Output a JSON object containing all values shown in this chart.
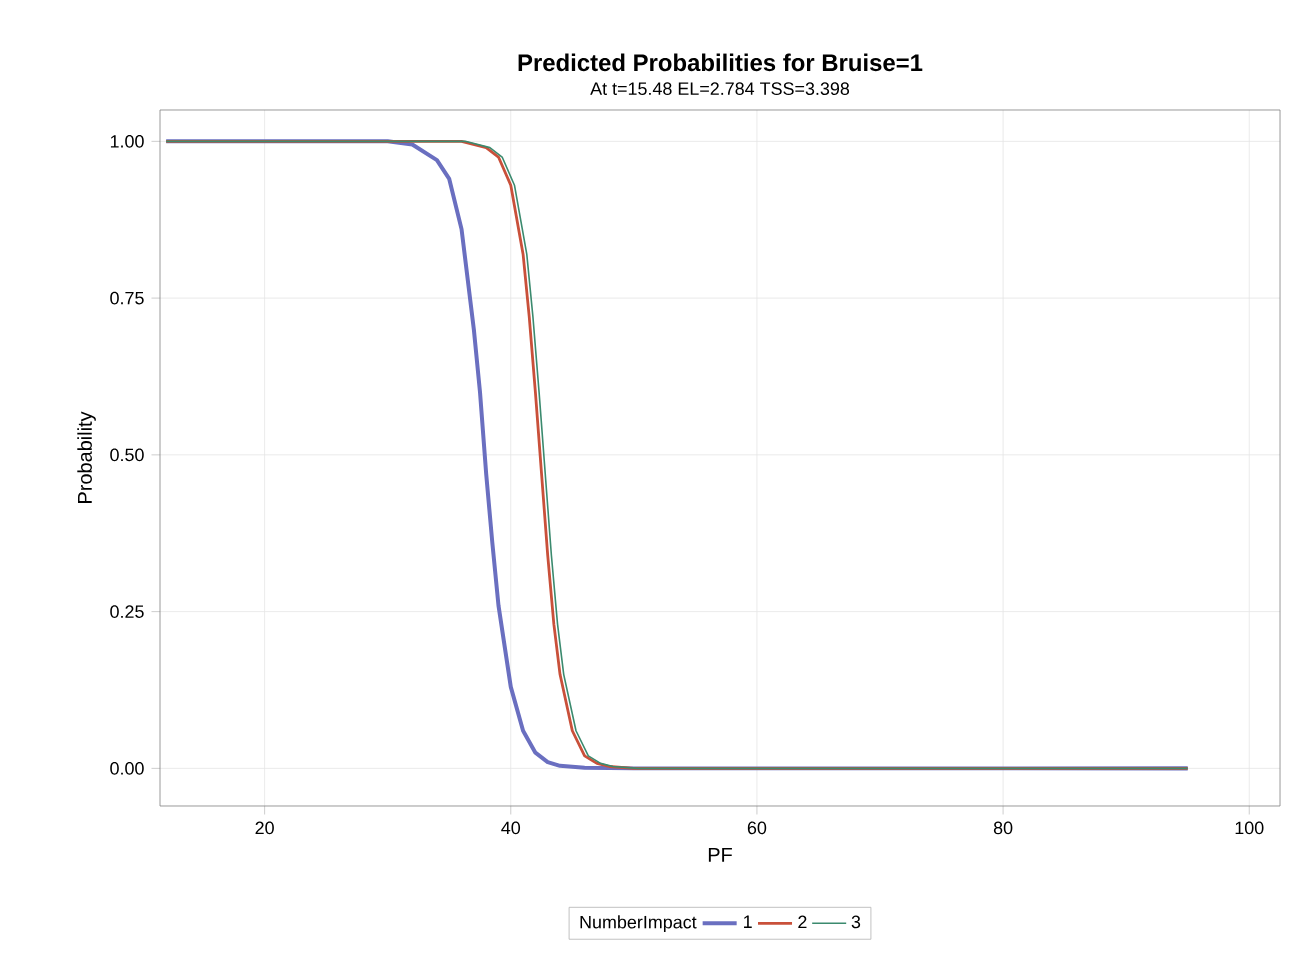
{
  "chart_data": {
    "type": "line",
    "title": "Predicted Probabilities for Bruise=1",
    "subtitle": "At t=15.48 EL=2.784 TSS=3.398",
    "xlabel": "PF",
    "ylabel": "Probability",
    "legend_title": "NumberImpact",
    "xlim": [
      11.5,
      102.5
    ],
    "ylim": [
      -0.06,
      1.05
    ],
    "xticks": [
      20,
      40,
      60,
      80,
      100
    ],
    "yticks": [
      {
        "value": 0,
        "label": "0.00"
      },
      {
        "value": 0.25,
        "label": "0.25"
      },
      {
        "value": 0.5,
        "label": "0.50"
      },
      {
        "value": 0.75,
        "label": "0.75"
      },
      {
        "value": 1,
        "label": "1.00"
      }
    ],
    "grid": true,
    "legend": "bottom",
    "line_style": "solid",
    "marker": "none",
    "series": [
      {
        "name": "1",
        "color": "#6a6fc0",
        "x": [
          12,
          30,
          32,
          34,
          35,
          36,
          37,
          37.5,
          38,
          38.5,
          39,
          40,
          41,
          42,
          43,
          44,
          46,
          50,
          95
        ],
        "values": [
          1,
          1,
          0.995,
          0.97,
          0.94,
          0.86,
          0.7,
          0.6,
          0.47,
          0.36,
          0.26,
          0.13,
          0.06,
          0.025,
          0.01,
          0.004,
          0.001,
          0,
          0
        ]
      },
      {
        "name": "2",
        "color": "#c9503a",
        "x": [
          12,
          36,
          38,
          39,
          40,
          41,
          41.5,
          42,
          42.5,
          43,
          43.5,
          44,
          45,
          46,
          47,
          48,
          50,
          95
        ],
        "values": [
          1,
          1,
          0.99,
          0.975,
          0.93,
          0.82,
          0.72,
          0.6,
          0.47,
          0.34,
          0.23,
          0.15,
          0.06,
          0.02,
          0.008,
          0.003,
          0,
          0
        ]
      },
      {
        "name": "3",
        "color": "#3b8a6e",
        "x": [
          12,
          36.3,
          38.3,
          39.3,
          40.3,
          41.3,
          41.8,
          42.3,
          42.8,
          43.3,
          43.8,
          44.3,
          45.3,
          46.3,
          47.3,
          48.3,
          50.3,
          95
        ],
        "values": [
          1,
          1,
          0.99,
          0.975,
          0.93,
          0.82,
          0.72,
          0.6,
          0.47,
          0.34,
          0.23,
          0.15,
          0.06,
          0.02,
          0.008,
          0.003,
          0,
          0
        ]
      }
    ]
  }
}
